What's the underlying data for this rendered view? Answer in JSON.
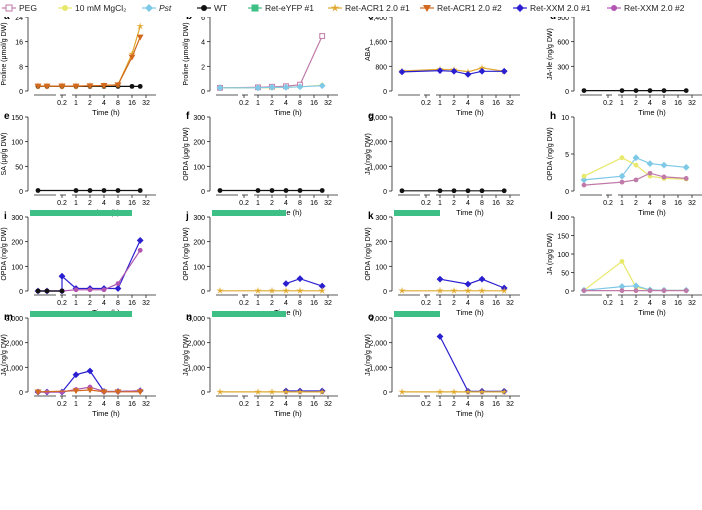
{
  "legend": [
    {
      "label": "PEG",
      "color": "#c07aa8",
      "marker": "square-open"
    },
    {
      "label": "10 mM MgCl₂",
      "color": "#e8e86a",
      "marker": "circle"
    },
    {
      "label": "Pst",
      "color": "#7ec8e8",
      "marker": "diamond",
      "italic": true
    },
    {
      "label": "WT",
      "color": "#111111",
      "marker": "circle"
    },
    {
      "label": "Ret-eYFP #1",
      "color": "#3dbf86",
      "marker": "square"
    },
    {
      "label": "Ret-ACR1 2.0 #1",
      "color": "#e0a82e",
      "marker": "star"
    },
    {
      "label": "Ret-ACR1 2.0 #2",
      "color": "#d2691e",
      "marker": "triangle-down"
    },
    {
      "label": "Ret-XXM 2.0 #1",
      "color": "#2a1fd0",
      "marker": "diamond"
    },
    {
      "label": "Ret-XXM 2.0 #2",
      "color": "#b255b0",
      "marker": "circle"
    }
  ],
  "time_axis": {
    "label": "Time (h)",
    "ticks": [
      "0.2",
      "1",
      "2",
      "4",
      "8",
      "16",
      "32"
    ]
  },
  "chart_data": [
    {
      "panel": "a",
      "type": "line",
      "ylabel": "Proline (μmol/g DW)",
      "ylim": [
        0,
        24
      ],
      "yticks": [
        "0",
        "8",
        "16",
        "24"
      ],
      "xticks": [
        "0.2",
        "1",
        "2",
        "4",
        "8",
        "16",
        "32"
      ],
      "bar_until": 16,
      "series": [
        {
          "name": "WT",
          "color": "#111111",
          "marker": "circle",
          "x": [
            0.05,
            0.1,
            0.2,
            0.5,
            1,
            2,
            4,
            8,
            16,
            24
          ],
          "y": [
            1.5,
            1.5,
            1.5,
            1.5,
            1.5,
            1.5,
            1.5,
            1.5,
            1.5,
            1.5
          ]
        },
        {
          "name": "Ret-ACR1 2.0 #1",
          "color": "#e0a82e",
          "marker": "star",
          "x": [
            0.05,
            0.1,
            0.2,
            0.5,
            1,
            2,
            4,
            8,
            16,
            24
          ],
          "y": [
            1.6,
            1.6,
            1.6,
            1.6,
            1.6,
            1.7,
            1.8,
            2.0,
            12.0,
            21.0
          ]
        },
        {
          "name": "Ret-ACR1 2.0 #2",
          "color": "#d2691e",
          "marker": "triangle-down",
          "x": [
            0.05,
            0.1,
            0.2,
            0.5,
            1,
            2,
            4,
            8,
            16,
            24
          ],
          "y": [
            1.6,
            1.6,
            1.6,
            1.6,
            1.6,
            1.7,
            1.8,
            2.0,
            11.0,
            17.5
          ]
        }
      ]
    },
    {
      "panel": "b",
      "type": "line",
      "ylabel": "Proline (μmol/g DW)",
      "ylim": [
        0,
        7
      ],
      "yticks": [
        "0",
        "2",
        "4",
        "6"
      ],
      "xticks": [
        "0.2",
        "1",
        "2",
        "4",
        "8",
        "16",
        "32"
      ],
      "series": [
        {
          "name": "PEG",
          "color": "#c07aa8",
          "marker": "square-open",
          "x": [
            0.05,
            1,
            2,
            4,
            8,
            24
          ],
          "y": [
            0.3,
            0.35,
            0.4,
            0.45,
            0.6,
            5.2
          ]
        },
        {
          "name": "10 mM MgCl2",
          "color": "#e8e86a",
          "marker": "circle",
          "x": [
            0.05,
            1,
            2,
            4,
            8,
            24
          ],
          "y": [
            0.3,
            0.3,
            0.3,
            0.35,
            0.4,
            0.55
          ]
        },
        {
          "name": "Pst",
          "color": "#7ec8e8",
          "marker": "diamond",
          "x": [
            0.05,
            1,
            2,
            4,
            8,
            24
          ],
          "y": [
            0.3,
            0.3,
            0.35,
            0.35,
            0.4,
            0.5
          ]
        }
      ]
    },
    {
      "panel": "c",
      "type": "line",
      "ylabel": "ABA",
      "ylim": [
        0,
        2400
      ],
      "yticks": [
        "0",
        "800",
        "1,600",
        "2,400"
      ],
      "xticks": [
        "0.2",
        "1",
        "2",
        "4",
        "8",
        "16",
        "32"
      ],
      "series": [
        {
          "name": "Ret-ACR1 2.0 #1",
          "color": "#e0a82e",
          "marker": "star",
          "x": [
            0.05,
            1,
            2,
            4,
            8,
            24
          ],
          "y": [
            650,
            700,
            690,
            620,
            750,
            640
          ]
        },
        {
          "name": "Ret-XXM 2.0 #1",
          "color": "#2a1fd0",
          "marker": "diamond",
          "x": [
            0.05,
            1,
            2,
            4,
            8,
            24
          ],
          "y": [
            620,
            660,
            640,
            540,
            640,
            640
          ]
        }
      ]
    },
    {
      "panel": "d",
      "type": "line",
      "ylabel": "JA-Ile (ng/g DW)",
      "ylim": [
        0,
        900
      ],
      "yticks": [
        "0",
        "300",
        "600",
        "900"
      ],
      "xticks": [
        "0.2",
        "1",
        "2",
        "4",
        "8",
        "16",
        "32"
      ],
      "series": [
        {
          "name": "WT",
          "color": "#111111",
          "marker": "circle",
          "x": [
            0.05,
            1,
            2,
            4,
            8,
            24
          ],
          "y": [
            5,
            5,
            5,
            5,
            5,
            5
          ]
        }
      ]
    },
    {
      "panel": "e",
      "type": "line",
      "ylabel": "SA (μg/g DW)",
      "ylim": [
        0,
        150
      ],
      "yticks": [
        "0",
        "50",
        "100",
        "150"
      ],
      "xticks": [
        "0.2",
        "1",
        "2",
        "4",
        "8",
        "16",
        "32"
      ],
      "series": [
        {
          "name": "WT",
          "color": "#111111",
          "marker": "circle",
          "x": [
            0.05,
            1,
            2,
            4,
            8,
            24
          ],
          "y": [
            1,
            1,
            1,
            1,
            1,
            1
          ]
        }
      ]
    },
    {
      "panel": "f",
      "type": "line",
      "ylabel": "OPDA (μg/g DW)",
      "ylim": [
        0,
        300
      ],
      "yticks": [
        "0",
        "100",
        "200",
        "300"
      ],
      "xticks": [
        "0.2",
        "1",
        "2",
        "4",
        "8",
        "16",
        "32"
      ],
      "series": [
        {
          "name": "WT",
          "color": "#111111",
          "marker": "circle",
          "x": [
            0.05,
            1,
            2,
            4,
            8,
            24
          ],
          "y": [
            2,
            2,
            2,
            2,
            2,
            2
          ]
        }
      ]
    },
    {
      "panel": "g",
      "type": "line",
      "ylabel": "JA (ng/g DW)",
      "ylim": [
        0,
        3000
      ],
      "yticks": [
        "0",
        "1,000",
        "2,000",
        "3,000"
      ],
      "xticks": [
        "0.2",
        "1",
        "2",
        "4",
        "8",
        "16",
        "32"
      ],
      "series": [
        {
          "name": "WT",
          "color": "#111111",
          "marker": "circle",
          "x": [
            0.05,
            1,
            2,
            4,
            8,
            24
          ],
          "y": [
            10,
            10,
            10,
            10,
            10,
            10
          ]
        }
      ]
    },
    {
      "panel": "h",
      "type": "line",
      "ylabel": "OPDA (ng/g DW)",
      "ylim": [
        0,
        10
      ],
      "yticks": [
        "0",
        "5",
        "10"
      ],
      "xticks": [
        "0.2",
        "1",
        "2",
        "4",
        "8",
        "16",
        "32"
      ],
      "series": [
        {
          "name": "Pst",
          "color": "#7ec8e8",
          "marker": "diamond",
          "x": [
            0.05,
            1,
            2,
            4,
            8,
            24
          ],
          "y": [
            1.5,
            2.0,
            4.5,
            3.7,
            3.5,
            3.2
          ]
        },
        {
          "name": "10 mM MgCl2",
          "color": "#e8e86a",
          "marker": "circle",
          "x": [
            0.05,
            1,
            2,
            4,
            8,
            24
          ],
          "y": [
            2.0,
            4.5,
            3.5,
            2.0,
            1.7,
            1.6
          ]
        },
        {
          "name": "PEG",
          "color": "#c07aa8",
          "marker": "circle",
          "x": [
            0.05,
            1,
            2,
            4,
            8,
            24
          ],
          "y": [
            0.8,
            1.2,
            1.5,
            2.4,
            1.9,
            1.7
          ]
        }
      ]
    },
    {
      "panel": "i",
      "type": "line",
      "ylabel": "OPDA (ng/g DW)",
      "ylim": [
        0,
        300
      ],
      "yticks": [
        "0",
        "100",
        "200",
        "300"
      ],
      "xticks": [
        "0.2",
        "1",
        "2",
        "4",
        "8",
        "16",
        "32"
      ],
      "bar_until": 16,
      "series": [
        {
          "name": "Ret-XXM 2.0 #1",
          "color": "#2a1fd0",
          "marker": "diamond",
          "x": [
            0.05,
            0.1,
            0.2,
            0.5,
            1,
            2,
            4,
            8,
            24
          ],
          "y": [
            0,
            0,
            0,
            60,
            10,
            10,
            10,
            10,
            205
          ]
        },
        {
          "name": "Ret-XXM 2.0 #2",
          "color": "#b255b0",
          "marker": "circle",
          "x": [
            0.05,
            0.1,
            0.2,
            0.5,
            1,
            2,
            4,
            8,
            24
          ],
          "y": [
            0,
            0,
            0,
            0,
            5,
            5,
            5,
            30,
            165
          ]
        },
        {
          "name": "WT",
          "color": "#111111",
          "marker": "circle",
          "x": [
            0.05,
            0.1,
            0.2
          ],
          "y": [
            0,
            0,
            0
          ]
        }
      ]
    },
    {
      "panel": "j",
      "type": "line",
      "ylabel": "OPDA (ng/g DW)",
      "ylim": [
        0,
        300
      ],
      "yticks": [
        "0",
        "100",
        "200",
        "300"
      ],
      "xticks": [
        "0.2",
        "1",
        "2",
        "4",
        "8",
        "16",
        "32"
      ],
      "bar_until": 4,
      "series": [
        {
          "name": "Ret-XXM 2.0 #1",
          "color": "#2a1fd0",
          "marker": "diamond",
          "x": [
            4,
            8,
            24
          ],
          "y": [
            30,
            50,
            20
          ]
        },
        {
          "name": "Ret-ACR1 2.0 #1",
          "color": "#e0a82e",
          "marker": "star",
          "x": [
            0.05,
            1,
            2,
            4,
            8,
            24
          ],
          "y": [
            1,
            1,
            1,
            1,
            1,
            1
          ]
        }
      ]
    },
    {
      "panel": "k",
      "type": "line",
      "ylabel": "OPDA (ng/g DW)",
      "ylim": [
        0,
        300
      ],
      "yticks": [
        "0",
        "100",
        "200",
        "300"
      ],
      "xticks": [
        "0.2",
        "1",
        "2",
        "4",
        "8",
        "16",
        "32"
      ],
      "bar_until": 1,
      "series": [
        {
          "name": "Ret-XXM 2.0 #1",
          "color": "#2a1fd0",
          "marker": "diamond",
          "x": [
            1,
            4,
            8,
            24
          ],
          "y": [
            48,
            28,
            48,
            12
          ]
        },
        {
          "name": "Ret-ACR1 2.0 #1",
          "color": "#e0a82e",
          "marker": "star",
          "x": [
            0.05,
            1,
            2,
            4,
            8,
            24
          ],
          "y": [
            1,
            1,
            1,
            1,
            1,
            1
          ]
        }
      ]
    },
    {
      "panel": "l",
      "type": "line",
      "ylabel": "JA (ng/g DW)",
      "ylim": [
        0,
        200
      ],
      "yticks": [
        "0",
        "50",
        "100",
        "150",
        "200"
      ],
      "xticks": [
        "0.2",
        "1",
        "2",
        "4",
        "8",
        "16",
        "32"
      ],
      "series": [
        {
          "name": "10 mM MgCl2",
          "color": "#e8e86a",
          "marker": "circle",
          "x": [
            0.05,
            1,
            2,
            4,
            8,
            24
          ],
          "y": [
            2,
            80,
            10,
            3,
            2,
            2
          ]
        },
        {
          "name": "Pst",
          "color": "#7ec8e8",
          "marker": "diamond",
          "x": [
            0.05,
            1,
            2,
            4,
            8,
            24
          ],
          "y": [
            2,
            12,
            14,
            3,
            2,
            2
          ]
        },
        {
          "name": "PEG",
          "color": "#c07aa8",
          "marker": "circle",
          "x": [
            0.05,
            1,
            2,
            4,
            8,
            24
          ],
          "y": [
            1,
            1,
            1,
            1,
            1,
            1
          ]
        }
      ]
    },
    {
      "panel": "m",
      "type": "line",
      "ylabel": "JA (ng/g DW)",
      "ylim": [
        0,
        3000
      ],
      "yticks": [
        "0",
        "1,000",
        "2,000",
        "3,000"
      ],
      "xticks": [
        "0.2",
        "1",
        "2",
        "4",
        "8",
        "16",
        "32"
      ],
      "bar_until": 16,
      "series": [
        {
          "name": "Ret-XXM 2.0 #1",
          "color": "#2a1fd0",
          "marker": "diamond",
          "x": [
            0.05,
            0.1,
            0.2,
            1,
            2,
            4,
            8,
            24
          ],
          "y": [
            0,
            0,
            0,
            700,
            850,
            20,
            20,
            50
          ]
        },
        {
          "name": "Ret-XXM 2.0 #2",
          "color": "#b255b0",
          "marker": "circle",
          "x": [
            0.05,
            0.1,
            0.2,
            1,
            2,
            4,
            8,
            24
          ],
          "y": [
            0,
            0,
            0,
            100,
            200,
            20,
            20,
            50
          ]
        },
        {
          "name": "Ret-ACR1 2.0 #2",
          "color": "#d2691e",
          "marker": "triangle-down",
          "x": [
            0.05,
            1,
            2,
            4,
            8,
            24
          ],
          "y": [
            5,
            50,
            80,
            10,
            10,
            10
          ]
        }
      ]
    },
    {
      "panel": "n",
      "type": "line",
      "ylabel": "JA (ng/g DW)",
      "ylim": [
        0,
        3000
      ],
      "yticks": [
        "0",
        "1,000",
        "2,000",
        "3,000"
      ],
      "xticks": [
        "0.2",
        "1",
        "2",
        "4",
        "8",
        "16",
        "32"
      ],
      "bar_until": 4,
      "series": [
        {
          "name": "Ret-XXM 2.0 #1",
          "color": "#2a1fd0",
          "marker": "diamond",
          "x": [
            4,
            8,
            24
          ],
          "y": [
            40,
            40,
            40
          ]
        },
        {
          "name": "Ret-ACR1 2.0 #1",
          "color": "#e0a82e",
          "marker": "star",
          "x": [
            0.05,
            1,
            2,
            4,
            8,
            24
          ],
          "y": [
            5,
            5,
            5,
            5,
            5,
            5
          ]
        }
      ]
    },
    {
      "panel": "o",
      "type": "line",
      "ylabel": "JA (ng/g DW)",
      "ylim": [
        0,
        3000
      ],
      "yticks": [
        "0",
        "1,000",
        "2,000",
        "3,000"
      ],
      "xticks": [
        "0.2",
        "1",
        "2",
        "4",
        "8",
        "16",
        "32"
      ],
      "bar_until": 1,
      "series": [
        {
          "name": "Ret-XXM 2.0 #1",
          "color": "#2a1fd0",
          "marker": "diamond",
          "x": [
            1,
            4,
            8,
            24
          ],
          "y": [
            2250,
            30,
            30,
            30
          ]
        },
        {
          "name": "Ret-ACR1 2.0 #1",
          "color": "#e0a82e",
          "marker": "star",
          "x": [
            0.05,
            1,
            2,
            4,
            8,
            24
          ],
          "y": [
            5,
            5,
            5,
            5,
            5,
            5
          ]
        }
      ]
    }
  ]
}
